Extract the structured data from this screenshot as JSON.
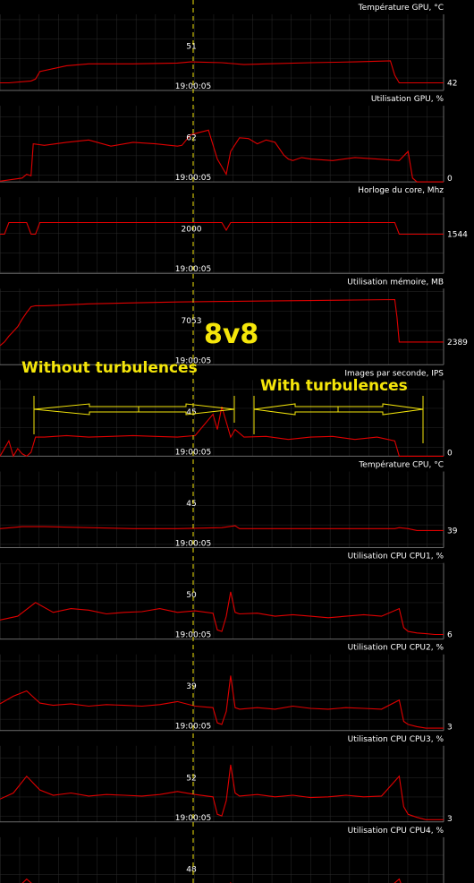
{
  "time_label": "19:00:05",
  "annotations": {
    "title": "8v8",
    "left_label": "Without turbulences",
    "right_label": "With turbulences"
  },
  "colors": {
    "background": "#000000",
    "grid": "#2a2a2a",
    "frame": "#6a6a6a",
    "series": "#e00000",
    "cursor": "#f5e60a",
    "annotation": "#f5e60a",
    "text": "#ffffff"
  },
  "chart_data": [
    {
      "type": "line",
      "title": "Température GPU, °C",
      "cursor_value": "51",
      "last_value": "42",
      "ylim": [
        40,
        60
      ],
      "x": [
        0,
        2,
        7,
        8,
        9,
        15,
        20,
        30,
        40,
        43,
        50,
        55,
        60,
        70,
        80,
        88,
        89,
        90,
        93,
        96,
        97,
        100
      ],
      "values": [
        42,
        42,
        42.5,
        43,
        45,
        46.5,
        47,
        47,
        47.2,
        47.5,
        47.3,
        46.8,
        47,
        47.3,
        47.5,
        47.8,
        44,
        42,
        42,
        42,
        42,
        42
      ]
    },
    {
      "type": "line",
      "title": "Utilisation GPU, %",
      "cursor_value": "62",
      "last_value": "0",
      "ylim": [
        0,
        100
      ],
      "x": [
        0,
        5,
        6,
        7,
        7.5,
        10,
        15,
        20,
        25,
        30,
        35,
        40,
        41,
        42,
        43,
        45,
        47,
        49,
        50,
        51,
        52,
        54,
        56,
        58,
        60,
        62,
        64,
        65,
        66,
        68,
        70,
        75,
        80,
        85,
        90,
        92,
        93,
        94,
        95,
        100
      ],
      "values": [
        1,
        5,
        10,
        8,
        50,
        48,
        52,
        55,
        47,
        52,
        50,
        47,
        48,
        55,
        62,
        65,
        68,
        30,
        20,
        10,
        40,
        58,
        57,
        50,
        55,
        52,
        35,
        30,
        28,
        32,
        30,
        28,
        32,
        30,
        28,
        40,
        5,
        0,
        0,
        0
      ]
    },
    {
      "type": "line",
      "title": "Horloge du core, Mhz",
      "cursor_value": "2000",
      "last_value": "1544",
      "ylim": [
        0,
        3000
      ],
      "x": [
        0,
        1,
        2,
        3,
        4,
        6,
        7,
        8,
        9,
        20,
        40,
        50,
        51,
        52,
        53,
        70,
        89,
        90,
        91,
        92,
        100
      ],
      "values": [
        1544,
        1544,
        2000,
        2000,
        2000,
        2000,
        1544,
        1544,
        2000,
        2000,
        2000,
        2000,
        1700,
        2000,
        2000,
        2000,
        2000,
        1544,
        1544,
        1544,
        1544
      ]
    },
    {
      "type": "line",
      "title": "Utilisation mémoire, MB",
      "cursor_value": "7053",
      "last_value": "2389",
      "ylim": [
        0,
        8000
      ],
      "x": [
        0,
        1,
        2,
        3,
        4,
        5,
        6,
        7,
        8,
        10,
        15,
        20,
        30,
        40,
        50,
        60,
        70,
        80,
        89,
        89.5,
        90,
        91,
        92,
        100
      ],
      "values": [
        2000,
        2400,
        3000,
        3500,
        4000,
        4800,
        5500,
        6100,
        6200,
        6200,
        6300,
        6400,
        6500,
        6600,
        6650,
        6700,
        6750,
        6800,
        6850,
        5000,
        2389,
        2389,
        2389,
        2389
      ]
    },
    {
      "type": "line",
      "title": "Images par seconde, IPS",
      "cursor_value": "45",
      "last_value": "0",
      "ylim": [
        0,
        100
      ],
      "x": [
        0,
        2,
        3,
        4,
        5,
        6,
        7,
        8,
        10,
        15,
        20,
        25,
        30,
        35,
        40,
        44,
        48,
        49,
        50,
        51,
        52,
        53,
        55,
        60,
        65,
        70,
        75,
        80,
        85,
        89,
        90,
        91,
        100
      ],
      "values": [
        0,
        20,
        0,
        10,
        3,
        0,
        5,
        25,
        25,
        27,
        25,
        26,
        27,
        26,
        25,
        27,
        55,
        35,
        65,
        45,
        25,
        35,
        25,
        26,
        22,
        25,
        26,
        22,
        25,
        20,
        0,
        0,
        0
      ]
    },
    {
      "type": "line",
      "title": "Température CPU, °C",
      "cursor_value": "45",
      "last_value": "39",
      "ylim": [
        30,
        70
      ],
      "x": [
        0,
        5,
        10,
        20,
        30,
        40,
        50,
        53,
        54,
        60,
        70,
        80,
        89,
        90,
        92,
        94,
        100
      ],
      "values": [
        40,
        41,
        41,
        40.5,
        40,
        40,
        40.5,
        41.5,
        40,
        40,
        40,
        40,
        40,
        40.5,
        40,
        39,
        39
      ]
    },
    {
      "type": "line",
      "title": "Utilisation CPU CPU1, %",
      "cursor_value": "50",
      "last_value": "6",
      "ylim": [
        0,
        100
      ],
      "x": [
        0,
        4,
        8,
        12,
        16,
        20,
        24,
        28,
        32,
        36,
        40,
        44,
        48,
        49,
        50,
        51,
        52,
        53,
        54,
        58,
        62,
        66,
        70,
        74,
        78,
        82,
        86,
        90,
        91,
        92,
        94,
        96,
        98,
        100
      ],
      "values": [
        25,
        30,
        48,
        35,
        40,
        38,
        33,
        35,
        36,
        40,
        35,
        37,
        34,
        12,
        10,
        30,
        62,
        35,
        33,
        34,
        30,
        32,
        30,
        28,
        30,
        32,
        30,
        40,
        15,
        10,
        8,
        7,
        6,
        6
      ]
    },
    {
      "type": "line",
      "title": "Utilisation CPU CPU2, %",
      "cursor_value": "39",
      "last_value": "3",
      "ylim": [
        0,
        100
      ],
      "x": [
        0,
        3,
        6,
        9,
        12,
        16,
        20,
        24,
        28,
        32,
        36,
        40,
        44,
        48,
        49,
        50,
        51,
        52,
        53,
        54,
        58,
        62,
        66,
        70,
        74,
        78,
        82,
        86,
        90,
        91,
        92,
        94,
        96,
        100
      ],
      "values": [
        35,
        45,
        52,
        36,
        33,
        35,
        32,
        34,
        33,
        32,
        34,
        38,
        32,
        30,
        10,
        8,
        25,
        72,
        30,
        28,
        30,
        28,
        32,
        29,
        28,
        30,
        29,
        28,
        40,
        12,
        8,
        5,
        3,
        3
      ]
    },
    {
      "type": "line",
      "title": "Utilisation CPU CPU3, %",
      "cursor_value": "52",
      "last_value": "3",
      "ylim": [
        0,
        100
      ],
      "x": [
        0,
        3,
        6,
        9,
        12,
        16,
        20,
        24,
        28,
        32,
        36,
        40,
        44,
        48,
        49,
        50,
        51,
        52,
        53,
        54,
        58,
        62,
        66,
        70,
        74,
        78,
        82,
        86,
        90,
        91,
        92,
        94,
        96,
        100
      ],
      "values": [
        30,
        38,
        60,
        42,
        35,
        38,
        34,
        36,
        35,
        34,
        36,
        40,
        36,
        33,
        10,
        8,
        28,
        75,
        38,
        34,
        36,
        33,
        35,
        32,
        33,
        35,
        33,
        34,
        60,
        20,
        10,
        6,
        3,
        3
      ]
    },
    {
      "type": "line",
      "title": "Utilisation CPU CPU4, %",
      "cursor_value": "48",
      "last_value": "",
      "ylim": [
        0,
        100
      ],
      "x": [
        0,
        3,
        6,
        9,
        12,
        16,
        20,
        24,
        28,
        32,
        36,
        40,
        44,
        48,
        50,
        52,
        54,
        58,
        62,
        66,
        70,
        74,
        78,
        82,
        86,
        90,
        92,
        94,
        96,
        100
      ],
      "values": [
        20,
        28,
        45,
        30,
        25,
        28,
        26,
        27,
        25,
        26,
        27,
        30,
        26,
        24,
        10,
        40,
        25,
        26,
        24,
        25,
        23,
        24,
        26,
        24,
        25,
        45,
        15,
        8,
        5,
        5
      ]
    }
  ]
}
